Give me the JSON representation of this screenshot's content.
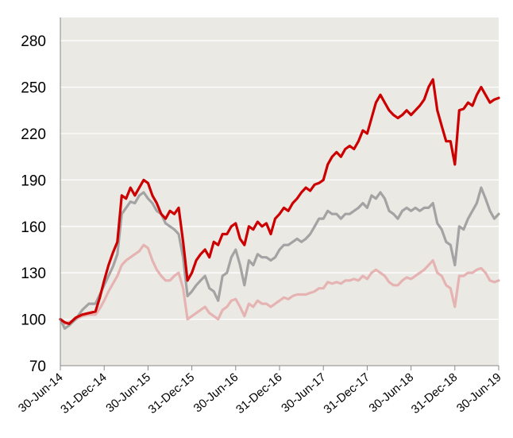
{
  "chart_data": {
    "type": "line",
    "title": "",
    "xlabel": "",
    "ylabel": "",
    "ylim": [
      70,
      295
    ],
    "yticks": [
      70,
      100,
      130,
      160,
      190,
      220,
      250,
      280
    ],
    "xticks": [
      "30-Jun-14",
      "31-Dec-14",
      "30-Jun-15",
      "31-Dec-15",
      "30-Jun-16",
      "31-Dec-16",
      "30-Jun-17",
      "31-Dec-17",
      "30-Jun-18",
      "31-Dec-18",
      "30-Jun-19"
    ],
    "grid": true,
    "legend": "none",
    "colors": {
      "plot_bg": "#ebe9e4",
      "grid": "#ffffff",
      "axis": "#888888",
      "series1": "#cc0000",
      "series2": "#a3a3a3",
      "series3": "#e6b3b3"
    },
    "x": [
      0,
      0.1,
      0.2,
      0.35,
      0.5,
      0.65,
      0.8,
      0.9,
      1,
      1.1,
      1.2,
      1.3,
      1.4,
      1.5,
      1.6,
      1.7,
      1.8,
      1.9,
      2,
      2.1,
      2.2,
      2.3,
      2.4,
      2.5,
      2.6,
      2.7,
      2.8,
      2.9,
      3,
      3.1,
      3.2,
      3.3,
      3.4,
      3.5,
      3.6,
      3.7,
      3.8,
      3.9,
      4,
      4.1,
      4.2,
      4.3,
      4.4,
      4.5,
      4.6,
      4.7,
      4.8,
      4.9,
      5,
      5.1,
      5.2,
      5.3,
      5.4,
      5.5,
      5.6,
      5.7,
      5.8,
      5.9,
      6,
      6.1,
      6.2,
      6.3,
      6.4,
      6.5,
      6.6,
      6.7,
      6.8,
      6.9,
      7,
      7.1,
      7.2,
      7.3,
      7.4,
      7.5,
      7.6,
      7.7,
      7.8,
      7.9,
      8,
      8.1,
      8.2,
      8.3,
      8.4,
      8.5,
      8.6,
      8.7,
      8.8,
      8.9,
      9,
      9.1,
      9.2,
      9.3,
      9.4,
      9.5,
      9.6,
      9.7,
      9.8,
      9.9,
      10
    ],
    "series": [
      {
        "values": [
          100,
          98,
          97,
          101,
          103,
          104,
          105,
          114,
          125,
          135,
          143,
          150,
          180,
          178,
          185,
          180,
          185,
          190,
          188,
          180,
          175,
          168,
          165,
          170,
          168,
          172,
          150,
          125,
          130,
          138,
          142,
          145,
          140,
          150,
          148,
          155,
          155,
          160,
          162,
          152,
          148,
          160,
          158,
          163,
          160,
          162,
          155,
          165,
          168,
          172,
          170,
          175,
          178,
          182,
          185,
          183,
          187,
          188,
          190,
          200,
          205,
          208,
          205,
          210,
          212,
          210,
          215,
          222,
          220,
          230,
          240,
          245,
          240,
          235,
          232,
          230,
          232,
          235,
          232,
          235,
          238,
          242,
          250,
          255,
          235,
          225,
          215,
          215,
          200,
          235,
          236,
          240,
          238,
          245,
          250,
          245,
          240,
          242,
          243
        ]
      },
      {
        "values": [
          100,
          94,
          96,
          100,
          106,
          110,
          110,
          116,
          122,
          128,
          134,
          142,
          168,
          172,
          176,
          175,
          180,
          182,
          178,
          175,
          170,
          168,
          162,
          160,
          158,
          155,
          140,
          115,
          118,
          122,
          125,
          128,
          120,
          118,
          112,
          128,
          130,
          140,
          145,
          135,
          122,
          138,
          135,
          142,
          140,
          140,
          138,
          140,
          145,
          148,
          148,
          150,
          152,
          150,
          152,
          155,
          160,
          165,
          165,
          170,
          168,
          168,
          165,
          168,
          168,
          170,
          172,
          175,
          172,
          180,
          178,
          182,
          178,
          170,
          168,
          165,
          170,
          172,
          170,
          172,
          170,
          172,
          172,
          175,
          162,
          158,
          150,
          148,
          135,
          160,
          158,
          165,
          170,
          175,
          185,
          178,
          170,
          165,
          168
        ]
      },
      {
        "values": [
          100,
          97,
          98,
          100,
          102,
          103,
          103,
          107,
          112,
          118,
          123,
          128,
          135,
          138,
          140,
          142,
          144,
          148,
          146,
          138,
          132,
          128,
          125,
          125,
          128,
          130,
          120,
          100,
          102,
          104,
          106,
          108,
          104,
          102,
          100,
          106,
          108,
          112,
          113,
          108,
          102,
          110,
          108,
          112,
          110,
          110,
          108,
          110,
          112,
          114,
          113,
          115,
          116,
          116,
          116,
          117,
          118,
          120,
          120,
          124,
          123,
          124,
          123,
          125,
          125,
          126,
          125,
          128,
          126,
          130,
          132,
          130,
          128,
          124,
          122,
          122,
          125,
          127,
          126,
          128,
          130,
          132,
          135,
          138,
          130,
          128,
          122,
          120,
          108,
          128,
          128,
          130,
          130,
          132,
          133,
          130,
          125,
          124,
          125
        ]
      }
    ]
  }
}
